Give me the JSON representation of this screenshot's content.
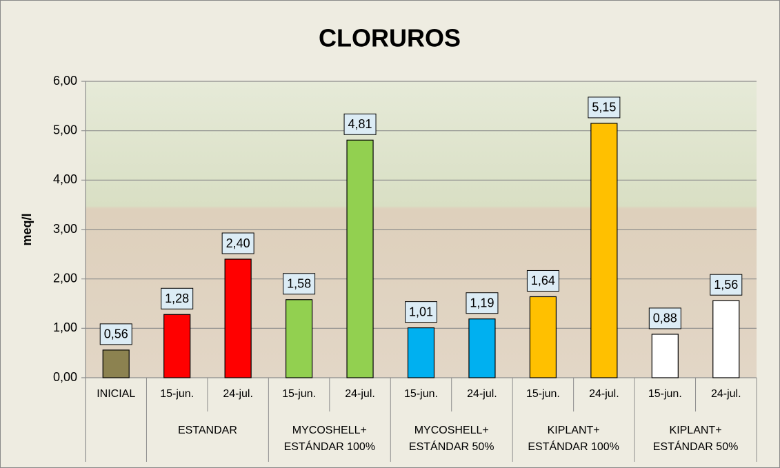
{
  "chart_data": {
    "type": "bar",
    "title": "CLORUROS",
    "y_label": "meq/l",
    "ylim": [
      0,
      6
    ],
    "grid": true,
    "yticks": [
      {
        "value": 0,
        "label": "0,00"
      },
      {
        "value": 1,
        "label": "1,00"
      },
      {
        "value": 2,
        "label": "2,00"
      },
      {
        "value": 3,
        "label": "3,00"
      },
      {
        "value": 4,
        "label": "4,00"
      },
      {
        "value": 5,
        "label": "5,00"
      },
      {
        "value": 6,
        "label": "6,00"
      }
    ],
    "groups": [
      {
        "name": null,
        "categories": [
          "INICIAL"
        ],
        "values": [
          0.56
        ],
        "value_labels": [
          "0,56"
        ],
        "color": "#8c8250"
      },
      {
        "name": "ESTANDAR",
        "categories": [
          "15-jun.",
          "24-jul."
        ],
        "values": [
          1.28,
          2.4
        ],
        "value_labels": [
          "1,28",
          "2,40"
        ],
        "color": "#ff0000"
      },
      {
        "name": "MYCOSHELL+\nESTÁNDAR 100%",
        "categories": [
          "15-jun.",
          "24-jul."
        ],
        "values": [
          1.58,
          4.81
        ],
        "value_labels": [
          "1,58",
          "4,81"
        ],
        "color": "#92d050"
      },
      {
        "name": "MYCOSHELL+\nESTÁNDAR 50%",
        "categories": [
          "15-jun.",
          "24-jul."
        ],
        "values": [
          1.01,
          1.19
        ],
        "value_labels": [
          "1,01",
          "1,19"
        ],
        "color": "#00b0f0"
      },
      {
        "name": "KIPLANT+\nESTÁNDAR 100%",
        "categories": [
          "15-jun.",
          "24-jul."
        ],
        "values": [
          1.64,
          5.15
        ],
        "value_labels": [
          "1,64",
          "5,15"
        ],
        "color": "#ffc000"
      },
      {
        "name": "KIPLANT+\nESTÁNDAR 50%",
        "categories": [
          "15-jun.",
          "24-jul."
        ],
        "values": [
          0.88,
          1.56
        ],
        "value_labels": [
          "0,88",
          "1,56"
        ],
        "color": "#ffffff"
      }
    ]
  }
}
